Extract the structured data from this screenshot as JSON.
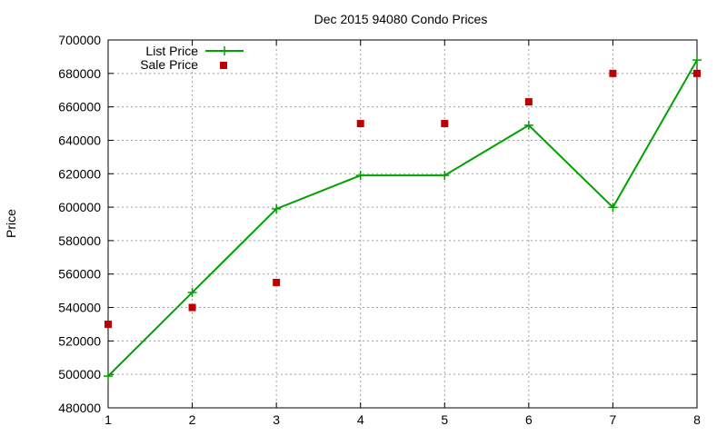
{
  "chart_data": {
    "type": "line",
    "title": "Dec 2015 94080 Condo Prices",
    "xlabel": "",
    "ylabel": "Price",
    "xlim": [
      1,
      8
    ],
    "ylim": [
      480000,
      700000
    ],
    "x_ticks": [
      "1",
      "2",
      "3",
      "4",
      "5",
      "6",
      "7",
      "8"
    ],
    "y_ticks": [
      "480000",
      "500000",
      "520000",
      "540000",
      "560000",
      "580000",
      "600000",
      "620000",
      "640000",
      "660000",
      "680000",
      "700000"
    ],
    "grid": true,
    "legend_position": "top-left",
    "x": [
      1,
      2,
      3,
      4,
      5,
      6,
      7,
      8
    ],
    "series": [
      {
        "name": "List Price",
        "style": "linespoints",
        "color": "#00a000",
        "values": [
          499000,
          549000,
          599000,
          619000,
          619000,
          649000,
          599900,
          688000
        ]
      },
      {
        "name": "Sale Price",
        "style": "points",
        "color": "#c00000",
        "values": [
          530000,
          540000,
          555000,
          650000,
          650000,
          663000,
          680000,
          680000
        ]
      }
    ]
  }
}
